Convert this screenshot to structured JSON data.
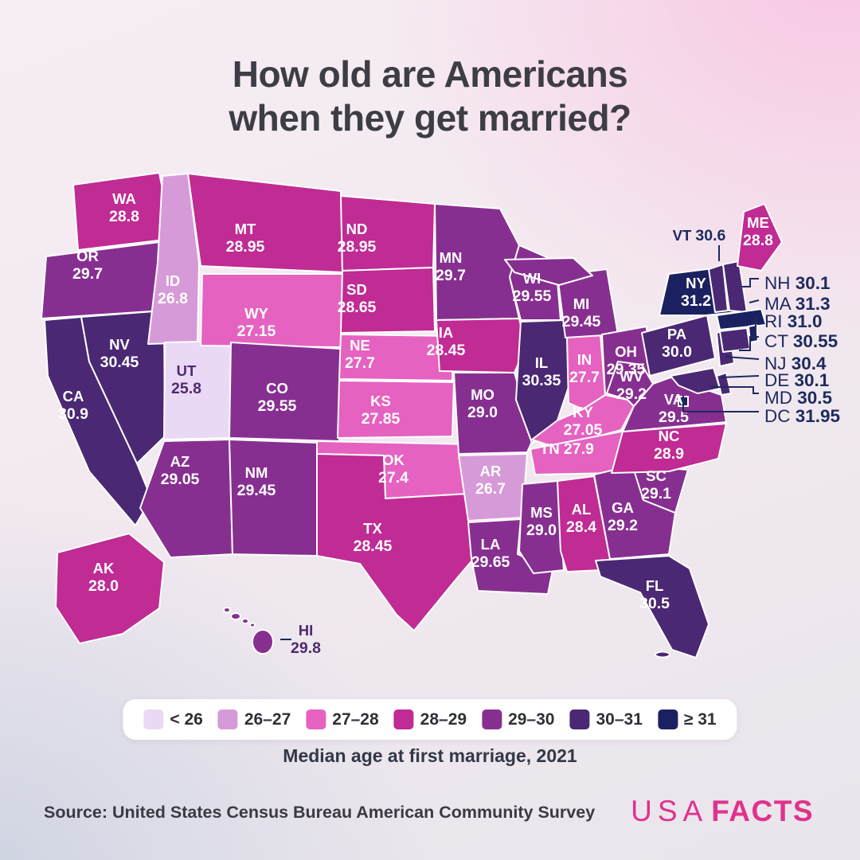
{
  "title": [
    "How old are Americans",
    "when they get married?"
  ],
  "caption": "Median age at first marriage, 2021",
  "source": "Source: United States Census Bureau American Community Survey",
  "logo": {
    "part1": "USA",
    "part2": "FACTS",
    "color": "#e0328c"
  },
  "label_colors": {
    "light": "#ffffff",
    "navy": "#1d2a5e",
    "dark_purple": "#4f2a6e"
  },
  "chart_data": {
    "type": "choropleth",
    "region": "United States",
    "title": "How old are Americans when they get married?",
    "metric": "Median age at first marriage, 2021",
    "unit": "years",
    "legend_position": "bottom",
    "buckets": [
      {
        "label": "< 26",
        "color": "#ead9f4"
      },
      {
        "label": "26–27",
        "color": "#d79ad8"
      },
      {
        "label": "27–28",
        "color": "#e662c0"
      },
      {
        "label": "28–29",
        "color": "#c02b94"
      },
      {
        "label": "29–30",
        "color": "#872f90"
      },
      {
        "label": "30–31",
        "color": "#4a2873"
      },
      {
        "label": "≥ 31",
        "color": "#1b2160"
      }
    ],
    "states": [
      {
        "abbr": "WA",
        "value": 28.8,
        "value_label": "28.8",
        "bucket": "28–29"
      },
      {
        "abbr": "OR",
        "value": 29.7,
        "value_label": "29.7",
        "bucket": "29–30"
      },
      {
        "abbr": "CA",
        "value": 30.9,
        "value_label": "30.9",
        "bucket": "30–31"
      },
      {
        "abbr": "NV",
        "value": 30.45,
        "value_label": "30.45",
        "bucket": "30–31"
      },
      {
        "abbr": "ID",
        "value": 26.8,
        "value_label": "26.8",
        "bucket": "26–27"
      },
      {
        "abbr": "UT",
        "value": 25.8,
        "value_label": "25.8",
        "bucket": "< 26"
      },
      {
        "abbr": "AZ",
        "value": 29.05,
        "value_label": "29.05",
        "bucket": "29–30"
      },
      {
        "abbr": "MT",
        "value": 28.95,
        "value_label": "28.95",
        "bucket": "28–29"
      },
      {
        "abbr": "WY",
        "value": 27.15,
        "value_label": "27.15",
        "bucket": "27–28"
      },
      {
        "abbr": "CO",
        "value": 29.55,
        "value_label": "29.55",
        "bucket": "29–30"
      },
      {
        "abbr": "NM",
        "value": 29.45,
        "value_label": "29.45",
        "bucket": "29–30"
      },
      {
        "abbr": "ND",
        "value": 28.95,
        "value_label": "28.95",
        "bucket": "28–29"
      },
      {
        "abbr": "SD",
        "value": 28.65,
        "value_label": "28.65",
        "bucket": "28–29"
      },
      {
        "abbr": "NE",
        "value": 27.7,
        "value_label": "27.7",
        "bucket": "27–28"
      },
      {
        "abbr": "KS",
        "value": 27.85,
        "value_label": "27.85",
        "bucket": "27–28"
      },
      {
        "abbr": "OK",
        "value": 27.4,
        "value_label": "27.4",
        "bucket": "27–28"
      },
      {
        "abbr": "TX",
        "value": 28.45,
        "value_label": "28.45",
        "bucket": "28–29"
      },
      {
        "abbr": "MN",
        "value": 29.7,
        "value_label": "29.7",
        "bucket": "29–30"
      },
      {
        "abbr": "IA",
        "value": 28.45,
        "value_label": "28.45",
        "bucket": "28–29"
      },
      {
        "abbr": "MO",
        "value": 29.0,
        "value_label": "29.0",
        "bucket": "29–30"
      },
      {
        "abbr": "AR",
        "value": 26.7,
        "value_label": "26.7",
        "bucket": "26–27"
      },
      {
        "abbr": "LA",
        "value": 29.65,
        "value_label": "29.65",
        "bucket": "29–30"
      },
      {
        "abbr": "WI",
        "value": 29.55,
        "value_label": "29.55",
        "bucket": "29–30"
      },
      {
        "abbr": "IL",
        "value": 30.35,
        "value_label": "30.35",
        "bucket": "30–31"
      },
      {
        "abbr": "IN",
        "value": 27.7,
        "value_label": "27.7",
        "bucket": "27–28"
      },
      {
        "abbr": "MI",
        "value": 29.45,
        "value_label": "29.45",
        "bucket": "29–30"
      },
      {
        "abbr": "OH",
        "value": 29.35,
        "value_label": "29.35",
        "bucket": "29–30"
      },
      {
        "abbr": "KY",
        "value": 27.05,
        "value_label": "27.05",
        "bucket": "27–28"
      },
      {
        "abbr": "TN",
        "value": 27.9,
        "value_label": "27.9",
        "bucket": "27–28"
      },
      {
        "abbr": "MS",
        "value": 29.0,
        "value_label": "29.0",
        "bucket": "29–30"
      },
      {
        "abbr": "AL",
        "value": 28.4,
        "value_label": "28.4",
        "bucket": "28–29"
      },
      {
        "abbr": "GA",
        "value": 29.2,
        "value_label": "29.2",
        "bucket": "29–30"
      },
      {
        "abbr": "FL",
        "value": 30.5,
        "value_label": "30.5",
        "bucket": "30–31"
      },
      {
        "abbr": "SC",
        "value": 29.1,
        "value_label": "29.1",
        "bucket": "29–30"
      },
      {
        "abbr": "NC",
        "value": 28.9,
        "value_label": "28.9",
        "bucket": "28–29"
      },
      {
        "abbr": "VA",
        "value": 29.5,
        "value_label": "29.5",
        "bucket": "29–30"
      },
      {
        "abbr": "WV",
        "value": 29.2,
        "value_label": "29.2",
        "bucket": "29–30"
      },
      {
        "abbr": "PA",
        "value": 30.0,
        "value_label": "30.0",
        "bucket": "30–31"
      },
      {
        "abbr": "NY",
        "value": 31.2,
        "value_label": "31.2",
        "bucket": "≥ 31"
      },
      {
        "abbr": "NJ",
        "value": 30.4,
        "value_label": "30.4",
        "bucket": "30–31"
      },
      {
        "abbr": "DE",
        "value": 30.1,
        "value_label": "30.1",
        "bucket": "30–31"
      },
      {
        "abbr": "MD",
        "value": 30.5,
        "value_label": "30.5",
        "bucket": "30–31"
      },
      {
        "abbr": "DC",
        "value": 31.95,
        "value_label": "31.95",
        "bucket": "≥ 31"
      },
      {
        "abbr": "VT",
        "value": 30.6,
        "value_label": "30.6",
        "bucket": "30–31"
      },
      {
        "abbr": "NH",
        "value": 30.1,
        "value_label": "30.1",
        "bucket": "30–31"
      },
      {
        "abbr": "MA",
        "value": 31.3,
        "value_label": "31.3",
        "bucket": "≥ 31"
      },
      {
        "abbr": "RI",
        "value": 31.0,
        "value_label": "31.0",
        "bucket": "≥ 31"
      },
      {
        "abbr": "CT",
        "value": 30.55,
        "value_label": "30.55",
        "bucket": "30–31"
      },
      {
        "abbr": "ME",
        "value": 28.8,
        "value_label": "28.8",
        "bucket": "28–29"
      },
      {
        "abbr": "AK",
        "value": 28.0,
        "value_label": "28.0",
        "bucket": "28–29"
      },
      {
        "abbr": "HI",
        "value": 29.8,
        "value_label": "29.8",
        "bucket": "29–30"
      }
    ]
  }
}
